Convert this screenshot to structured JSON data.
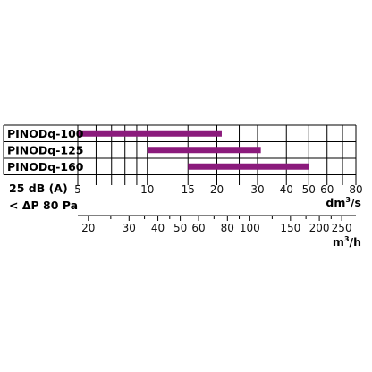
{
  "chart_data": {
    "type": "bar",
    "subtype": "range-bar",
    "bar_color": "#8b1a7c",
    "x_scale": "log",
    "xlim": [
      5,
      80
    ],
    "categories": [
      "PINODq-100",
      "PINODq-125",
      "PINODq-160"
    ],
    "series": [
      {
        "ranges": [
          [
            5,
            21
          ],
          [
            10,
            31
          ],
          [
            15,
            50
          ]
        ]
      }
    ],
    "annotations": [
      "25 dB (A)",
      "< ΔP 80 Pa"
    ],
    "axis_dm3s": {
      "unit_base": "dm",
      "unit_exp": "3",
      "unit_suffix": "/s",
      "major_ticks": [
        {
          "value": 5,
          "label": "5"
        },
        {
          "value": 10,
          "label": "10"
        },
        {
          "value": 15,
          "label": "15"
        },
        {
          "value": 20,
          "label": "20"
        },
        {
          "value": 30,
          "label": "30"
        },
        {
          "value": 40,
          "label": "40"
        },
        {
          "value": 50,
          "label": "50"
        },
        {
          "value": 60,
          "label": "60"
        },
        {
          "value": 80,
          "label": "80"
        }
      ],
      "grid_values": [
        5,
        6,
        7,
        8,
        9,
        10,
        15,
        20,
        25,
        30,
        40,
        50,
        60,
        70,
        80
      ]
    },
    "axis_m3h": {
      "unit_base": "m",
      "unit_exp": "3",
      "unit_suffix": "/h",
      "major_ticks": [
        {
          "value": 20,
          "label": "20"
        },
        {
          "value": 30,
          "label": "30"
        },
        {
          "value": 40,
          "label": "40"
        },
        {
          "value": 50,
          "label": "50"
        },
        {
          "value": 60,
          "label": "60"
        },
        {
          "value": 80,
          "label": "80"
        },
        {
          "value": 100,
          "label": "100"
        },
        {
          "value": 150,
          "label": "150"
        },
        {
          "value": 200,
          "label": "200"
        },
        {
          "value": 250,
          "label": "250"
        }
      ],
      "minor_ticks": [
        25,
        35,
        45,
        70,
        90,
        125,
        175,
        225
      ]
    }
  }
}
